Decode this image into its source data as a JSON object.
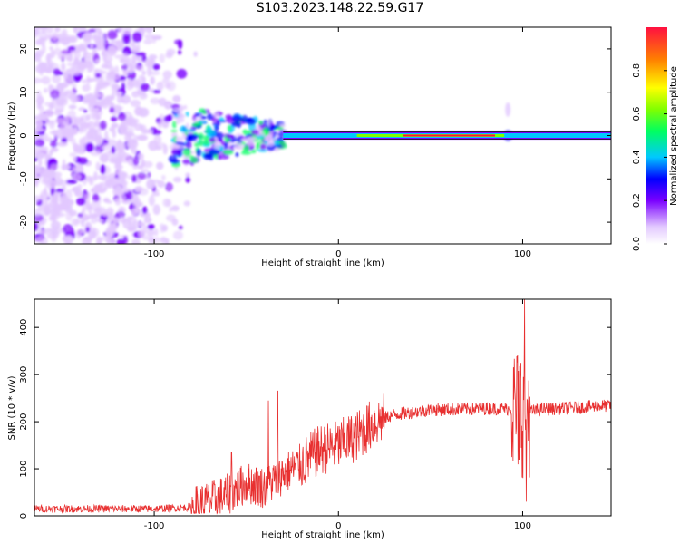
{
  "title": "S103.2023.148.22.59.G17",
  "colors": {
    "snr_line": "#e83030",
    "spectrogram_tone": "#7a00ff",
    "frame": "#000000"
  },
  "chart_data": [
    {
      "type": "heatmap",
      "name": "spectrogram",
      "xlabel": "Height of straight line (km)",
      "ylabel": "Frequency (Hz)",
      "xlim": [
        -165,
        148
      ],
      "ylim": [
        -25,
        25
      ],
      "x_ticks": [
        -100,
        0,
        100
      ],
      "y_ticks": [
        -20,
        -10,
        0,
        10,
        20
      ],
      "x_tick_labels": [
        "-100",
        "0",
        "100"
      ],
      "y_tick_labels": [
        "-20",
        "-10",
        "0",
        "10",
        "20"
      ],
      "colorbar": {
        "label": "Normalized spectral amplitude",
        "range": [
          0,
          1
        ],
        "ticks": [
          0.0,
          0.2,
          0.4,
          0.6,
          0.8
        ],
        "tick_labels": [
          "0.0",
          "0.2",
          "0.4",
          "0.6",
          "0.8"
        ],
        "colormap": [
          "#ffffff",
          "#e2c8ff",
          "#7a00ff",
          "#0000ff",
          "#00c8ff",
          "#00ff60",
          "#80ff00",
          "#ffff00",
          "#ff8000",
          "#ff1040"
        ]
      },
      "features": {
        "noise_region_x": [
          -165,
          -80
        ],
        "scintillating_region_x": [
          -90,
          -30
        ],
        "stable_tone_x": [
          -30,
          148
        ],
        "tone_frequency_hz": 0,
        "disturbance_near_x": 92
      }
    },
    {
      "type": "line",
      "name": "snr",
      "xlabel": "Height of straight line (km)",
      "ylabel": "SNR (10 * v/v)",
      "xlim": [
        -165,
        148
      ],
      "ylim": [
        0,
        460
      ],
      "x_ticks": [
        -100,
        0,
        100
      ],
      "y_ticks": [
        0,
        100,
        200,
        300,
        400
      ],
      "x_tick_labels": [
        "-100",
        "0",
        "100"
      ],
      "y_tick_labels": [
        "0",
        "100",
        "200",
        "300",
        "400"
      ],
      "profile": {
        "x": [
          -165,
          -100,
          -80,
          -70,
          -60,
          -50,
          -40,
          -30,
          -20,
          -10,
          0,
          10,
          20,
          30,
          50,
          80,
          90,
          95,
          100,
          105,
          110,
          130,
          148
        ],
        "y": [
          15,
          15,
          18,
          30,
          45,
          70,
          60,
          90,
          110,
          140,
          150,
          170,
          200,
          215,
          225,
          228,
          228,
          225,
          220,
          222,
          226,
          230,
          235
        ]
      },
      "spikes": [
        {
          "x": -33,
          "y": 265
        },
        {
          "x": -38,
          "y": 245
        },
        {
          "x": -58,
          "y": 135
        },
        {
          "x": 99,
          "y": 325
        },
        {
          "x": 101,
          "y": 460
        },
        {
          "x": 102,
          "y": 30
        },
        {
          "x": 98,
          "y": 120
        }
      ]
    }
  ]
}
